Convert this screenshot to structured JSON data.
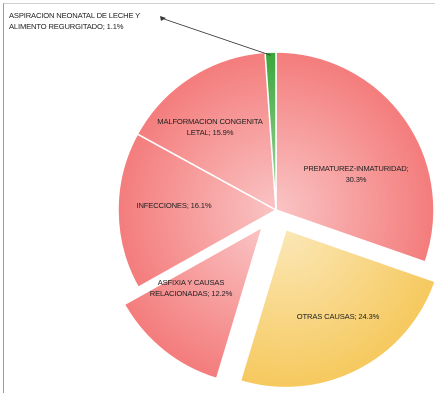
{
  "chart_data": {
    "type": "pie",
    "title": "",
    "unit": "%",
    "slices": [
      {
        "name": "PREMATUREZ-INMATURIDAD",
        "value": 30.3,
        "color": "#f47c7c",
        "exploded": false,
        "label_lines": [
          "PREMATUREZ-INMATURIDAD;",
          "30.3%"
        ]
      },
      {
        "name": "OTRAS CAUSAS",
        "value": 24.3,
        "color": "#f6c95e",
        "exploded": true,
        "label_lines": [
          "OTRAS CAUSAS; 24.3%"
        ]
      },
      {
        "name": "ASFIXIA Y CAUSAS RELACIONADAS",
        "value": 12.2,
        "color": "#f47c7c",
        "exploded": true,
        "label_lines": [
          "ASFIXIA Y CAUSAS",
          "RELACIONADAS; 12.2%"
        ]
      },
      {
        "name": "INFECCIONES",
        "value": 16.1,
        "color": "#f47c7c",
        "exploded": false,
        "label_lines": [
          "INFECCIONES; 16.1%"
        ]
      },
      {
        "name": "MALFORMACION CONGENITA LETAL",
        "value": 15.9,
        "color": "#f47c7c",
        "exploded": false,
        "label_lines": [
          "MALFORMACION CONGENITA",
          "LETAL; 15.9%"
        ]
      },
      {
        "name": "ASPIRACION NEONATAL DE LECHE Y ALIMENTO REGURGITADO",
        "value": 1.1,
        "color": "#3aa63a",
        "exploded": false,
        "label_lines": [
          "ASPIRACION NEONATAL DE LECHE Y",
          "ALIMENTO REGURGITADO; 1.1%"
        ]
      }
    ]
  }
}
